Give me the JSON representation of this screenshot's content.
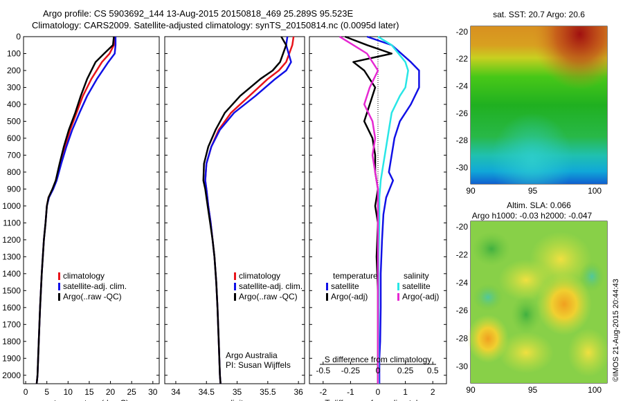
{
  "header": {
    "title_line1": "Argo profile: CS 5903692_144 13-Aug-2015 20150818_469 25.289S 95.523E",
    "title_line2": "Climatology: CARS2009. Satellite-adjusted climatology: synTS_20150814.nc (0.0095d later)"
  },
  "side_stamp": "©IMOS 21-Aug-2015 20:44:43",
  "colors": {
    "climatology": "#e8141b",
    "satellite": "#1010e6",
    "argo": "#000000",
    "sal_satellite": "#28e6e6",
    "sal_argo": "#e628d2"
  },
  "depth_ticks": [
    "0",
    "100",
    "200",
    "300",
    "400",
    "500",
    "600",
    "700",
    "800",
    "900",
    "1000",
    "1100",
    "1200",
    "1300",
    "1400",
    "1500",
    "1600",
    "1700",
    "1800",
    "1900",
    "2000"
  ],
  "panels": {
    "temperature": {
      "xlabel": "temperature (deg C)",
      "xticks": [
        "0",
        "5",
        "10",
        "15",
        "20",
        "25",
        "30"
      ],
      "legend": [
        "climatology",
        "satellite-adj. clim.",
        "Argo(..raw -QC)"
      ]
    },
    "salinity": {
      "xlabel": "salinity",
      "xticks": [
        "34",
        "34.5",
        "35",
        "35.5",
        "36"
      ],
      "legend": [
        "climatology",
        "satellite-adj. clim.",
        "Argo(..raw -QC)"
      ],
      "note_line1": "Argo Australia",
      "note_line2": "PI: Susan Wijffels"
    },
    "difference": {
      "xlabel": "T difference from climatology",
      "xticks": [
        "-2",
        "-1",
        "0",
        "1",
        "2"
      ],
      "s_axis_label": "S difference from climatology",
      "s_ticks": [
        "-0.5",
        "-0.25",
        "0",
        "0.25",
        "0.5"
      ],
      "legend_temp_title": "temperature",
      "legend_sal_title": "salinity",
      "legend_temp": [
        "satellite",
        "Argo(-adj)"
      ],
      "legend_sal": [
        "satellite",
        "Argo(-adj)"
      ]
    }
  },
  "maps": {
    "sst": {
      "title": "sat. SST: 20.7  Argo: 20.6",
      "yticks": [
        "-20",
        "-22",
        "-24",
        "-26",
        "-28",
        "-30"
      ],
      "xticks": [
        "90",
        "95",
        "100"
      ]
    },
    "sla": {
      "title_line1": "Altim. SLA: 0.066",
      "title_line2": "Argo h1000: -0.03 h2000: -0.047",
      "yticks": [
        "-20",
        "-22",
        "-24",
        "-26",
        "-28",
        "-30"
      ],
      "xticks": [
        "90",
        "95",
        "100"
      ]
    }
  },
  "chart_data": [
    {
      "type": "line",
      "title": "",
      "xlabel": "temperature (deg C)",
      "ylabel": "",
      "xlim": [
        -0.5,
        31.5
      ],
      "ylim": [
        2050,
        0
      ],
      "series": [
        {
          "name": "climatology",
          "x": [
            21,
            20.8,
            19.8,
            18,
            15.5,
            13.5,
            12,
            10.5,
            9.3,
            8.2,
            7.2,
            6.4,
            5.4,
            5.0,
            4.7,
            4.3,
            3.8,
            3.4,
            3.1,
            2.8,
            2.6
          ],
          "y": [
            0,
            50,
            100,
            150,
            250,
            350,
            450,
            550,
            650,
            750,
            850,
            900,
            950,
            1000,
            1100,
            1200,
            1400,
            1600,
            1800,
            2000,
            2050
          ]
        },
        {
          "name": "satellite-adj. clim.",
          "x": [
            21.2,
            21.2,
            21,
            19.5,
            16.8,
            14.5,
            12.7,
            11,
            9.6,
            8.4,
            7.3,
            6.5,
            5.5,
            5.0,
            4.7,
            4.3,
            3.8,
            3.4,
            3.1,
            2.8,
            2.6
          ],
          "y": [
            0,
            50,
            100,
            150,
            250,
            350,
            450,
            550,
            650,
            750,
            850,
            900,
            950,
            1000,
            1100,
            1200,
            1400,
            1600,
            1800,
            2000,
            2050
          ]
        },
        {
          "name": "Argo(..raw -QC)",
          "x": [
            20.8,
            20.6,
            18.5,
            16.5,
            14.5,
            13,
            11.7,
            10.2,
            9,
            8,
            7.1,
            6.3,
            5.4,
            5.0,
            4.7,
            4.3,
            3.8,
            3.4,
            3.1,
            2.8,
            2.6
          ],
          "y": [
            0,
            50,
            100,
            150,
            250,
            350,
            450,
            550,
            650,
            750,
            850,
            900,
            950,
            1000,
            1100,
            1200,
            1400,
            1600,
            1800,
            2000,
            2050
          ]
        }
      ]
    },
    {
      "type": "line",
      "title": "",
      "xlabel": "salinity",
      "ylabel": "",
      "xlim": [
        33.82,
        36.1
      ],
      "ylim": [
        2050,
        0
      ],
      "series": [
        {
          "name": "climatology",
          "x": [
            35.92,
            35.9,
            35.8,
            35.68,
            35.5,
            35.2,
            34.9,
            34.7,
            34.58,
            34.5,
            34.48,
            34.5,
            34.53,
            34.57,
            34.6,
            34.63,
            34.66,
            34.68,
            34.7,
            34.72,
            34.73
          ],
          "y": [
            0,
            50,
            150,
            200,
            250,
            350,
            450,
            550,
            650,
            750,
            850,
            900,
            1000,
            1100,
            1200,
            1300,
            1450,
            1600,
            1800,
            2000,
            2050
          ]
        },
        {
          "name": "satellite-adj. clim.",
          "x": [
            35.82,
            35.8,
            35.88,
            35.8,
            35.62,
            35.3,
            34.95,
            34.72,
            34.58,
            34.5,
            34.48,
            34.5,
            34.53,
            34.57,
            34.6,
            34.63,
            34.66,
            34.68,
            34.7,
            34.72,
            34.73
          ],
          "y": [
            0,
            50,
            150,
            200,
            250,
            350,
            450,
            550,
            650,
            750,
            850,
            900,
            1000,
            1100,
            1200,
            1300,
            1450,
            1600,
            1800,
            2000,
            2050
          ]
        },
        {
          "name": "Argo(..raw -QC)",
          "x": [
            35.72,
            35.8,
            35.7,
            35.58,
            35.38,
            35.05,
            34.8,
            34.65,
            34.53,
            34.46,
            34.45,
            34.48,
            34.52,
            34.56,
            34.6,
            34.63,
            34.66,
            34.68,
            34.7,
            34.72,
            34.73
          ],
          "y": [
            0,
            50,
            150,
            200,
            250,
            350,
            450,
            550,
            650,
            750,
            850,
            900,
            1000,
            1100,
            1200,
            1300,
            1450,
            1600,
            1800,
            2000,
            2050
          ]
        }
      ]
    },
    {
      "type": "line",
      "title": "",
      "xlabel": "T difference from climatology",
      "ylabel": "",
      "xlim": [
        -2.5,
        2.5
      ],
      "ylim": [
        2050,
        0
      ],
      "series": [
        {
          "name": "temperature satellite",
          "x": [
            -0.4,
            0.5,
            1.2,
            1.5,
            1.5,
            1.2,
            0.8,
            0.6,
            0.5,
            0.4,
            0.55,
            0.3,
            0.2,
            0.15,
            0.1,
            0.1,
            0.08,
            0.05,
            0.05,
            0.05,
            0.05
          ],
          "y": [
            0,
            50,
            150,
            200,
            300,
            400,
            500,
            600,
            700,
            800,
            850,
            950,
            1050,
            1200,
            1400,
            1600,
            1800,
            1900,
            2000,
            2050,
            2050
          ]
        },
        {
          "name": "temperature Argo(-adj)",
          "x": [
            -1.2,
            -0.4,
            0.5,
            -0.9,
            -0.5,
            -0.1,
            -0.3,
            -0.5,
            -0.2,
            -0.1,
            -0.1,
            0.0,
            -0.1,
            0.0,
            -0.05,
            0.0,
            0.0,
            0.0,
            0.0,
            0.0
          ],
          "y": [
            0,
            50,
            100,
            150,
            200,
            300,
            400,
            500,
            600,
            700,
            800,
            900,
            1000,
            1100,
            1300,
            1500,
            1700,
            1850,
            2000,
            2050
          ]
        },
        {
          "name": "salinity satellite",
          "x": [
            0.0,
            0.5,
            1.0,
            1.1,
            1.0,
            0.8,
            0.5,
            0.4,
            0.3,
            0.2,
            0.1,
            0.05,
            0.05,
            0.02,
            0.02,
            0.02,
            0.02
          ],
          "y": [
            0,
            50,
            150,
            200,
            300,
            350,
            450,
            550,
            650,
            750,
            850,
            950,
            1100,
            1300,
            1500,
            1800,
            2050
          ]
        },
        {
          "name": "salinity Argo(-adj)",
          "x": [
            -1.4,
            -0.9,
            -0.4,
            0.0,
            -0.3,
            -0.5,
            -0.2,
            -0.1,
            -0.2,
            -0.1,
            0.0,
            0.0,
            0.0,
            0.0
          ],
          "y": [
            0,
            50,
            100,
            200,
            300,
            400,
            500,
            600,
            700,
            800,
            900,
            1100,
            1500,
            2050
          ]
        }
      ]
    },
    {
      "type": "heatmap",
      "title": "sat. SST: 20.7  Argo: 20.6",
      "xlabel": "",
      "ylabel": "",
      "xlim": [
        90,
        101
      ],
      "ylim": [
        -31.2,
        -19.6
      ]
    },
    {
      "type": "heatmap",
      "title": "Altim. SLA: 0.066 Argo h1000: -0.03 h2000: -0.047",
      "xlabel": "",
      "ylabel": "",
      "xlim": [
        90,
        101
      ],
      "ylim": [
        -31.2,
        -19.6
      ]
    }
  ]
}
